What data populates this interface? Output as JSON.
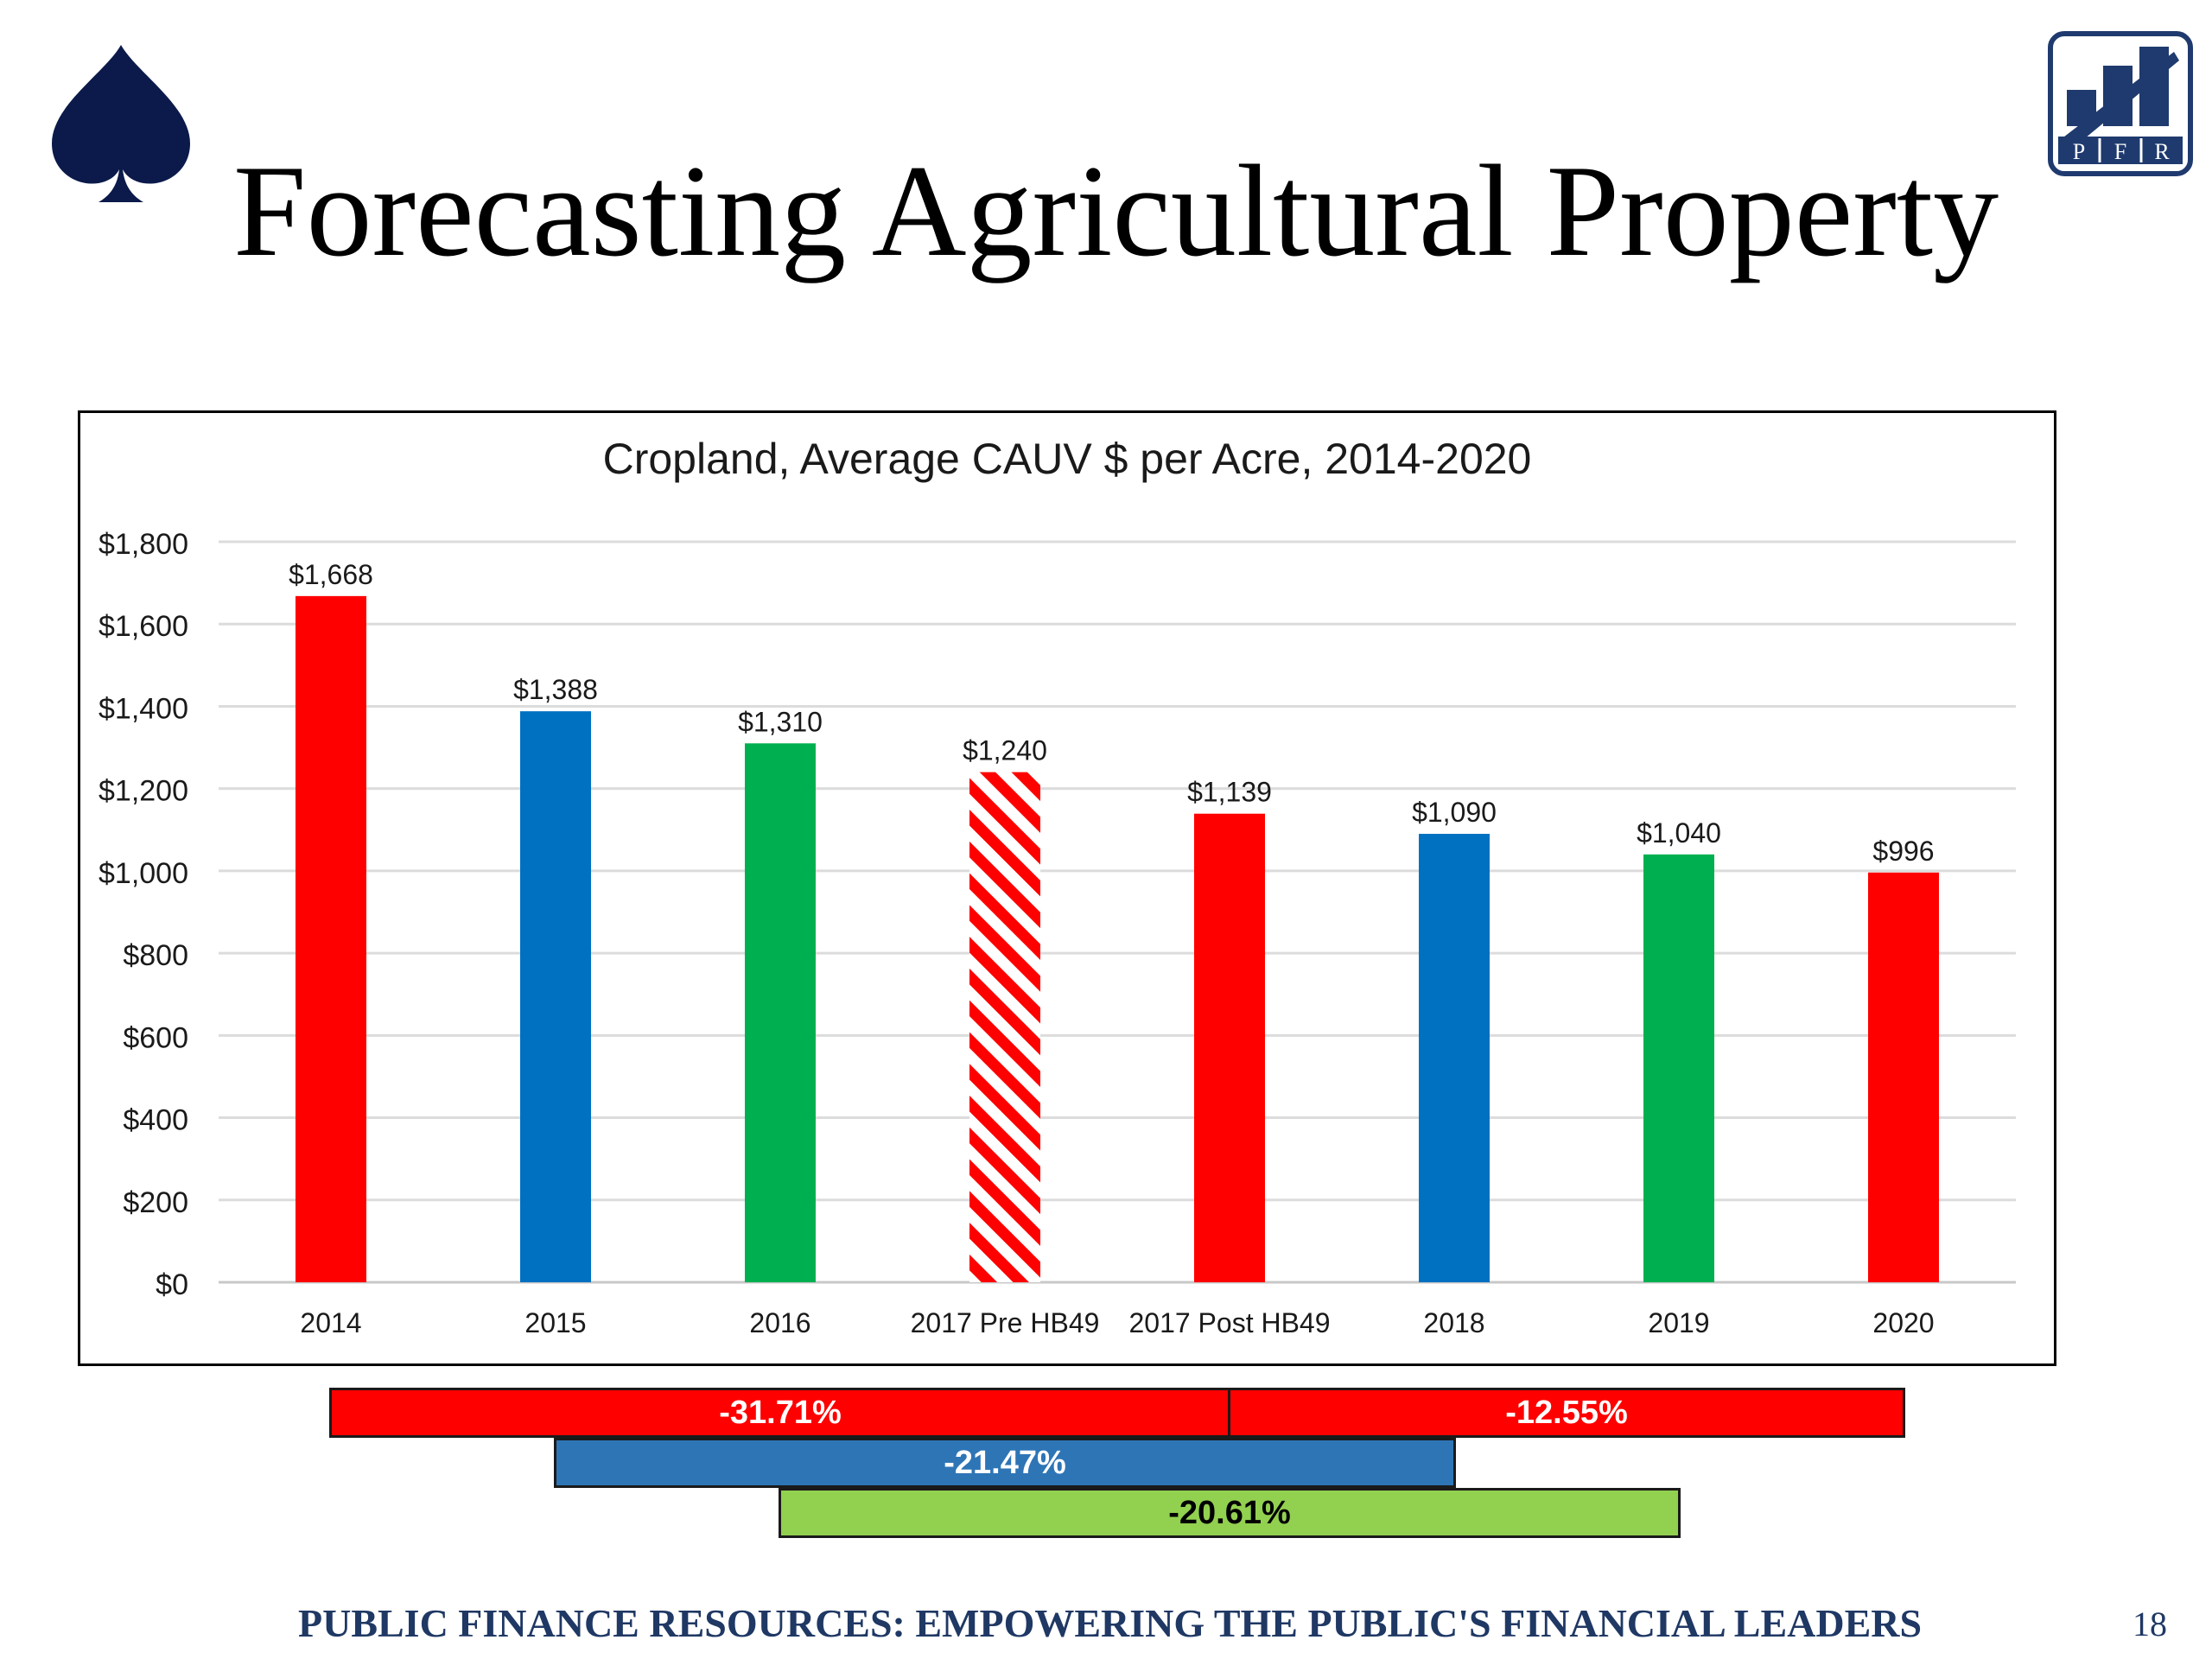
{
  "slide": {
    "title": "Forecasting Agricultural Property",
    "footer": "PUBLIC FINANCE RESOURCES: EMPOWERING THE PUBLIC'S FINANCIAL LEADERS",
    "page_number": "18",
    "logo": {
      "icon": "spade-icon",
      "color": "#0B1A4A"
    },
    "pfr_logo": {
      "icon": "bar-chart-logo-icon",
      "letters": [
        "P",
        "F",
        "R"
      ],
      "color": "#1F3A6E"
    }
  },
  "chart_data": {
    "type": "bar",
    "title": "Cropland, Average CAUV $ per Acre, 2014-2020",
    "xlabel": "",
    "ylabel": "",
    "ylim": [
      0,
      1800
    ],
    "ytick_step": 200,
    "ytick_prefix": "$",
    "grid": true,
    "legend": "none",
    "categories": [
      "2014",
      "2015",
      "2016",
      "2017 Pre HB49",
      "2017 Post HB49",
      "2018",
      "2019",
      "2020"
    ],
    "values": [
      1668,
      1388,
      1310,
      1240,
      1139,
      1090,
      1040,
      996
    ],
    "data_labels": [
      "$1,668",
      "$1,388",
      "$1,310",
      "$1,240",
      "$1,139",
      "$1,090",
      "$1,040",
      "$996"
    ],
    "bar_fills": [
      "solid",
      "solid",
      "solid",
      "hatched",
      "solid",
      "solid",
      "solid",
      "solid"
    ],
    "bar_colors": [
      "#FF0000",
      "#0070C0",
      "#00B050",
      "#FF0000",
      "#FF0000",
      "#0070C0",
      "#00B050",
      "#FF0000"
    ]
  },
  "change_bars": [
    {
      "label": "-31.71%",
      "from": "2014",
      "to": "2017 Post HB49",
      "color": "#FF0000",
      "text_color": "#ffffff"
    },
    {
      "label": "-12.55%",
      "from": "2017 Post HB49",
      "to": "2020",
      "color": "#FF0000",
      "text_color": "#ffffff"
    },
    {
      "label": "-21.47%",
      "from": "2015",
      "to": "2018",
      "color": "#2E75B6",
      "text_color": "#ffffff"
    },
    {
      "label": "-20.61%",
      "from": "2016",
      "to": "2019",
      "color": "#92D050",
      "text_color": "#000000"
    }
  ]
}
